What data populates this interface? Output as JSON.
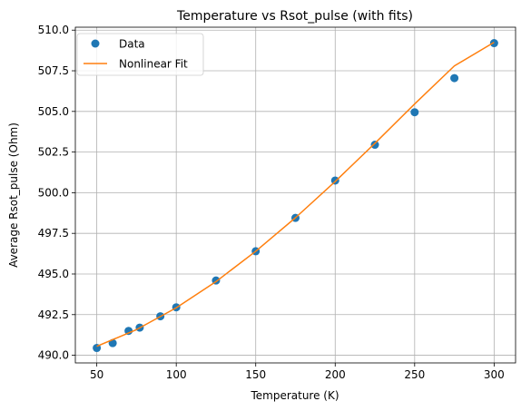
{
  "chart_data": {
    "type": "scatter",
    "title": "Temperature vs Rsot_pulse (with fits)",
    "xlabel": "Temperature (K)",
    "ylabel": "Average Rsot_pulse (Ohm)",
    "xlim": [
      36.5,
      313.5
    ],
    "ylim": [
      489.53,
      510.18
    ],
    "x_ticks": [
      50,
      100,
      150,
      200,
      250,
      300
    ],
    "x_tick_labels": [
      "50",
      "100",
      "150",
      "200",
      "250",
      "300"
    ],
    "y_ticks": [
      490.0,
      492.5,
      495.0,
      497.5,
      500.0,
      502.5,
      505.0,
      507.5,
      510.0
    ],
    "y_tick_labels": [
      "490.0",
      "492.5",
      "495.0",
      "497.5",
      "500.0",
      "502.5",
      "505.0",
      "507.5",
      "510.0"
    ],
    "grid": true,
    "legend_position": "top-left",
    "series": [
      {
        "name": "Data",
        "kind": "scatter",
        "color": "#1f77b4",
        "x": [
          50,
          60,
          70,
          77,
          90,
          100,
          125,
          150,
          175,
          200,
          225,
          250,
          275,
          300
        ],
        "y": [
          490.45,
          490.75,
          491.5,
          491.7,
          492.4,
          492.95,
          494.6,
          496.4,
          498.45,
          500.75,
          502.95,
          504.95,
          507.05,
          509.2
        ]
      },
      {
        "name": "Nonlinear Fit",
        "kind": "line",
        "color": "#ff7f0e",
        "x": [
          50,
          75,
          100,
          125,
          150,
          175,
          200,
          225,
          250,
          275,
          300
        ],
        "y": [
          490.55,
          491.58,
          492.92,
          494.53,
          496.4,
          498.46,
          500.69,
          503.04,
          505.46,
          507.8,
          509.25
        ]
      }
    ]
  }
}
